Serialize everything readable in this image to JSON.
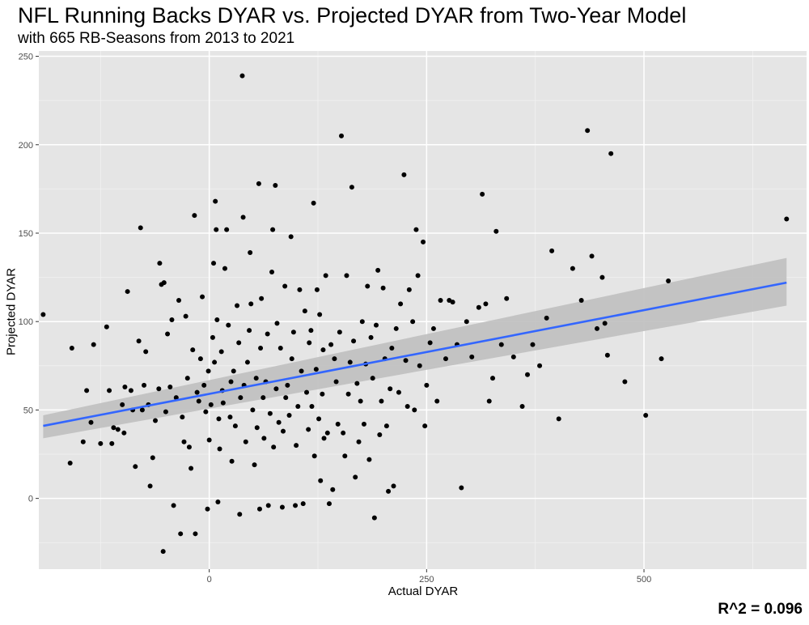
{
  "chart_data": {
    "type": "scatter",
    "title": "NFL Running Backs DYAR vs. Projected DYAR from Two-Year Model",
    "subtitle": "with 665 RB-Seasons from 2013 to 2021",
    "xlabel": "Actual DYAR",
    "ylabel": "Projected DYAR",
    "annotation": "R^2 = 0.096",
    "xlim": [
      -196,
      687
    ],
    "ylim": [
      -40,
      253
    ],
    "xticks": [
      0,
      250,
      500
    ],
    "yticks": [
      0,
      50,
      100,
      150,
      200,
      250
    ],
    "grid": true,
    "background": "#e5e5e5",
    "point_color": "#000000",
    "regression": {
      "method": "linear",
      "x": [
        -191,
        664
      ],
      "y": [
        41,
        122
      ],
      "ci_upper": [
        47,
        136
      ],
      "ci_lower": [
        34,
        109
      ],
      "line_color": "#3366ff",
      "ribbon_color": "#bfbfbf"
    },
    "series": [
      {
        "points": [
          [
            -191,
            104
          ],
          [
            -160,
            20
          ],
          [
            -158,
            85
          ],
          [
            -145,
            32
          ],
          [
            -141,
            61
          ],
          [
            -136,
            43
          ],
          [
            -133,
            87
          ],
          [
            -125,
            31
          ],
          [
            -118,
            97
          ],
          [
            -115,
            61
          ],
          [
            -112,
            31
          ],
          [
            -110,
            40
          ],
          [
            -105,
            39
          ],
          [
            -100,
            53
          ],
          [
            -98,
            37
          ],
          [
            -97,
            63
          ],
          [
            -94,
            117
          ],
          [
            -90,
            61
          ],
          [
            -88,
            50
          ],
          [
            -85,
            18
          ],
          [
            -81,
            89
          ],
          [
            -79,
            153
          ],
          [
            -77,
            50
          ],
          [
            -75,
            64
          ],
          [
            -73,
            83
          ],
          [
            -70,
            53
          ],
          [
            -68,
            7
          ],
          [
            -65,
            23
          ],
          [
            -62,
            44
          ],
          [
            -58,
            62
          ],
          [
            -57,
            133
          ],
          [
            -55,
            121
          ],
          [
            -53,
            -30
          ],
          [
            -52,
            122
          ],
          [
            -50,
            49
          ],
          [
            -48,
            93
          ],
          [
            -45,
            63
          ],
          [
            -43,
            101
          ],
          [
            -41,
            -4
          ],
          [
            -38,
            57
          ],
          [
            -35,
            112
          ],
          [
            -33,
            -20
          ],
          [
            -31,
            46
          ],
          [
            -29,
            32
          ],
          [
            -27,
            103
          ],
          [
            -25,
            68
          ],
          [
            -23,
            29
          ],
          [
            -21,
            17
          ],
          [
            -19,
            84
          ],
          [
            -17,
            160
          ],
          [
            -16,
            -20
          ],
          [
            -14,
            60
          ],
          [
            -12,
            55
          ],
          [
            -10,
            79
          ],
          [
            -8,
            114
          ],
          [
            -6,
            64
          ],
          [
            -4,
            49
          ],
          [
            -2,
            -6
          ],
          [
            -1,
            72
          ],
          [
            0,
            33
          ],
          [
            2,
            53
          ],
          [
            4,
            91
          ],
          [
            5,
            133
          ],
          [
            6,
            77
          ],
          [
            7,
            168
          ],
          [
            8,
            152
          ],
          [
            9,
            101
          ],
          [
            10,
            -2
          ],
          [
            11,
            45
          ],
          [
            12,
            28
          ],
          [
            14,
            83
          ],
          [
            15,
            61
          ],
          [
            16,
            54
          ],
          [
            18,
            130
          ],
          [
            20,
            152
          ],
          [
            22,
            98
          ],
          [
            24,
            46
          ],
          [
            25,
            66
          ],
          [
            26,
            21
          ],
          [
            28,
            72
          ],
          [
            30,
            41
          ],
          [
            32,
            109
          ],
          [
            34,
            88
          ],
          [
            35,
            -9
          ],
          [
            36,
            57
          ],
          [
            38,
            239
          ],
          [
            39,
            159
          ],
          [
            40,
            64
          ],
          [
            42,
            32
          ],
          [
            44,
            77
          ],
          [
            46,
            95
          ],
          [
            47,
            139
          ],
          [
            48,
            110
          ],
          [
            50,
            50
          ],
          [
            52,
            19
          ],
          [
            54,
            68
          ],
          [
            55,
            40
          ],
          [
            57,
            178
          ],
          [
            58,
            -6
          ],
          [
            59,
            85
          ],
          [
            60,
            113
          ],
          [
            62,
            57
          ],
          [
            63,
            34
          ],
          [
            65,
            66
          ],
          [
            67,
            93
          ],
          [
            68,
            -4
          ],
          [
            70,
            48
          ],
          [
            72,
            128
          ],
          [
            73,
            152
          ],
          [
            74,
            29
          ],
          [
            76,
            177
          ],
          [
            77,
            62
          ],
          [
            78,
            99
          ],
          [
            80,
            43
          ],
          [
            82,
            85
          ],
          [
            84,
            -5
          ],
          [
            85,
            38
          ],
          [
            87,
            120
          ],
          [
            88,
            57
          ],
          [
            90,
            64
          ],
          [
            92,
            47
          ],
          [
            94,
            148
          ],
          [
            95,
            79
          ],
          [
            97,
            94
          ],
          [
            99,
            -4
          ],
          [
            100,
            30
          ],
          [
            102,
            52
          ],
          [
            104,
            118
          ],
          [
            106,
            72
          ],
          [
            108,
            -3
          ],
          [
            110,
            106
          ],
          [
            112,
            60
          ],
          [
            114,
            39
          ],
          [
            115,
            88
          ],
          [
            117,
            95
          ],
          [
            118,
            52
          ],
          [
            120,
            167
          ],
          [
            121,
            24
          ],
          [
            123,
            73
          ],
          [
            124,
            118
          ],
          [
            126,
            45
          ],
          [
            127,
            104
          ],
          [
            128,
            10
          ],
          [
            130,
            59
          ],
          [
            131,
            84
          ],
          [
            132,
            34
          ],
          [
            134,
            126
          ],
          [
            136,
            37
          ],
          [
            138,
            -3
          ],
          [
            140,
            87
          ],
          [
            142,
            5
          ],
          [
            144,
            79
          ],
          [
            146,
            66
          ],
          [
            148,
            42
          ],
          [
            150,
            94
          ],
          [
            152,
            205
          ],
          [
            154,
            37
          ],
          [
            156,
            24
          ],
          [
            158,
            126
          ],
          [
            160,
            59
          ],
          [
            162,
            77
          ],
          [
            164,
            176
          ],
          [
            166,
            89
          ],
          [
            168,
            12
          ],
          [
            170,
            65
          ],
          [
            172,
            32
          ],
          [
            174,
            55
          ],
          [
            176,
            100
          ],
          [
            178,
            42
          ],
          [
            180,
            76
          ],
          [
            182,
            120
          ],
          [
            184,
            22
          ],
          [
            186,
            91
          ],
          [
            188,
            68
          ],
          [
            190,
            -11
          ],
          [
            192,
            98
          ],
          [
            194,
            129
          ],
          [
            196,
            36
          ],
          [
            198,
            55
          ],
          [
            200,
            119
          ],
          [
            202,
            79
          ],
          [
            204,
            41
          ],
          [
            206,
            4
          ],
          [
            208,
            62
          ],
          [
            210,
            85
          ],
          [
            212,
            7
          ],
          [
            215,
            96
          ],
          [
            218,
            60
          ],
          [
            220,
            110
          ],
          [
            224,
            183
          ],
          [
            226,
            78
          ],
          [
            228,
            52
          ],
          [
            230,
            118
          ],
          [
            234,
            100
          ],
          [
            236,
            50
          ],
          [
            238,
            152
          ],
          [
            240,
            126
          ],
          [
            242,
            75
          ],
          [
            246,
            145
          ],
          [
            248,
            41
          ],
          [
            250,
            64
          ],
          [
            254,
            88
          ],
          [
            258,
            96
          ],
          [
            262,
            55
          ],
          [
            266,
            112
          ],
          [
            272,
            79
          ],
          [
            276,
            112
          ],
          [
            280,
            111
          ],
          [
            285,
            87
          ],
          [
            290,
            6
          ],
          [
            296,
            100
          ],
          [
            302,
            80
          ],
          [
            310,
            108
          ],
          [
            314,
            172
          ],
          [
            318,
            110
          ],
          [
            322,
            55
          ],
          [
            326,
            68
          ],
          [
            330,
            151
          ],
          [
            336,
            87
          ],
          [
            342,
            113
          ],
          [
            350,
            80
          ],
          [
            360,
            52
          ],
          [
            366,
            70
          ],
          [
            372,
            87
          ],
          [
            380,
            75
          ],
          [
            388,
            102
          ],
          [
            394,
            140
          ],
          [
            402,
            45
          ],
          [
            418,
            130
          ],
          [
            428,
            112
          ],
          [
            435,
            208
          ],
          [
            440,
            137
          ],
          [
            446,
            96
          ],
          [
            452,
            125
          ],
          [
            455,
            99
          ],
          [
            458,
            81
          ],
          [
            462,
            195
          ],
          [
            478,
            66
          ],
          [
            502,
            47
          ],
          [
            520,
            79
          ],
          [
            528,
            123
          ],
          [
            664,
            158
          ]
        ]
      }
    ]
  }
}
